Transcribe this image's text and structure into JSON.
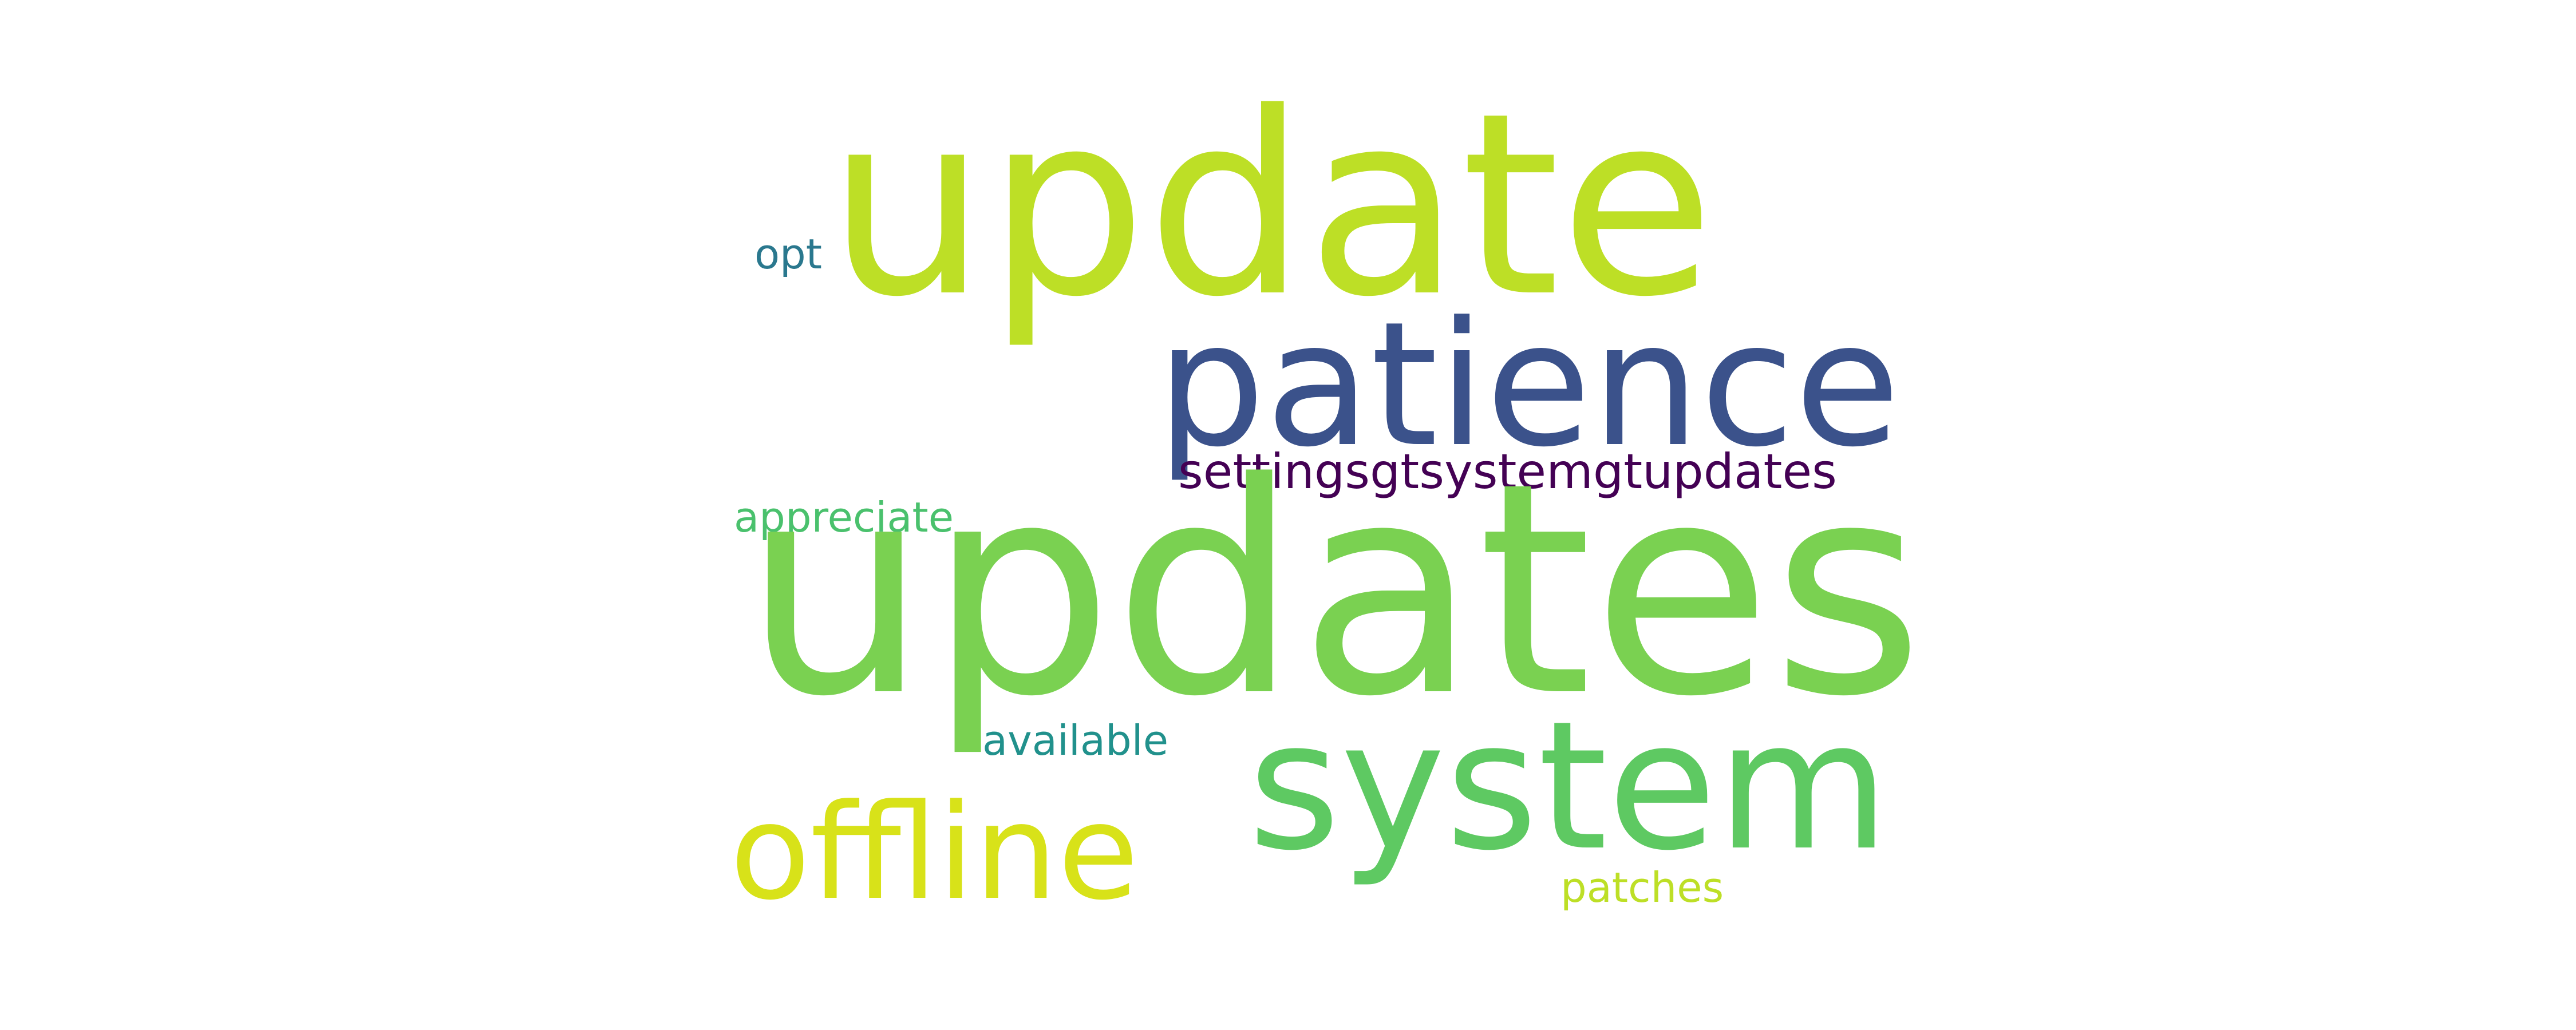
{
  "words": {
    "update": {
      "text": "update",
      "color": "#bddf26"
    },
    "patience": {
      "text": "patience",
      "color": "#3b528b"
    },
    "settings": {
      "text": "settingsgtsystemgtupdates",
      "color": "#440154"
    },
    "opt": {
      "text": "opt",
      "color": "#2a788e"
    },
    "appreciate": {
      "text": "appreciate",
      "color": "#4ac16d"
    },
    "updates": {
      "text": "updates",
      "color": "#7ad151"
    },
    "available": {
      "text": "available",
      "color": "#21918c"
    },
    "system": {
      "text": "system",
      "color": "#5ec962"
    },
    "offline": {
      "text": "offline",
      "color": "#d8e219"
    },
    "patches": {
      "text": "patches",
      "color": "#bddf26"
    }
  },
  "background_color": "#ffffff"
}
